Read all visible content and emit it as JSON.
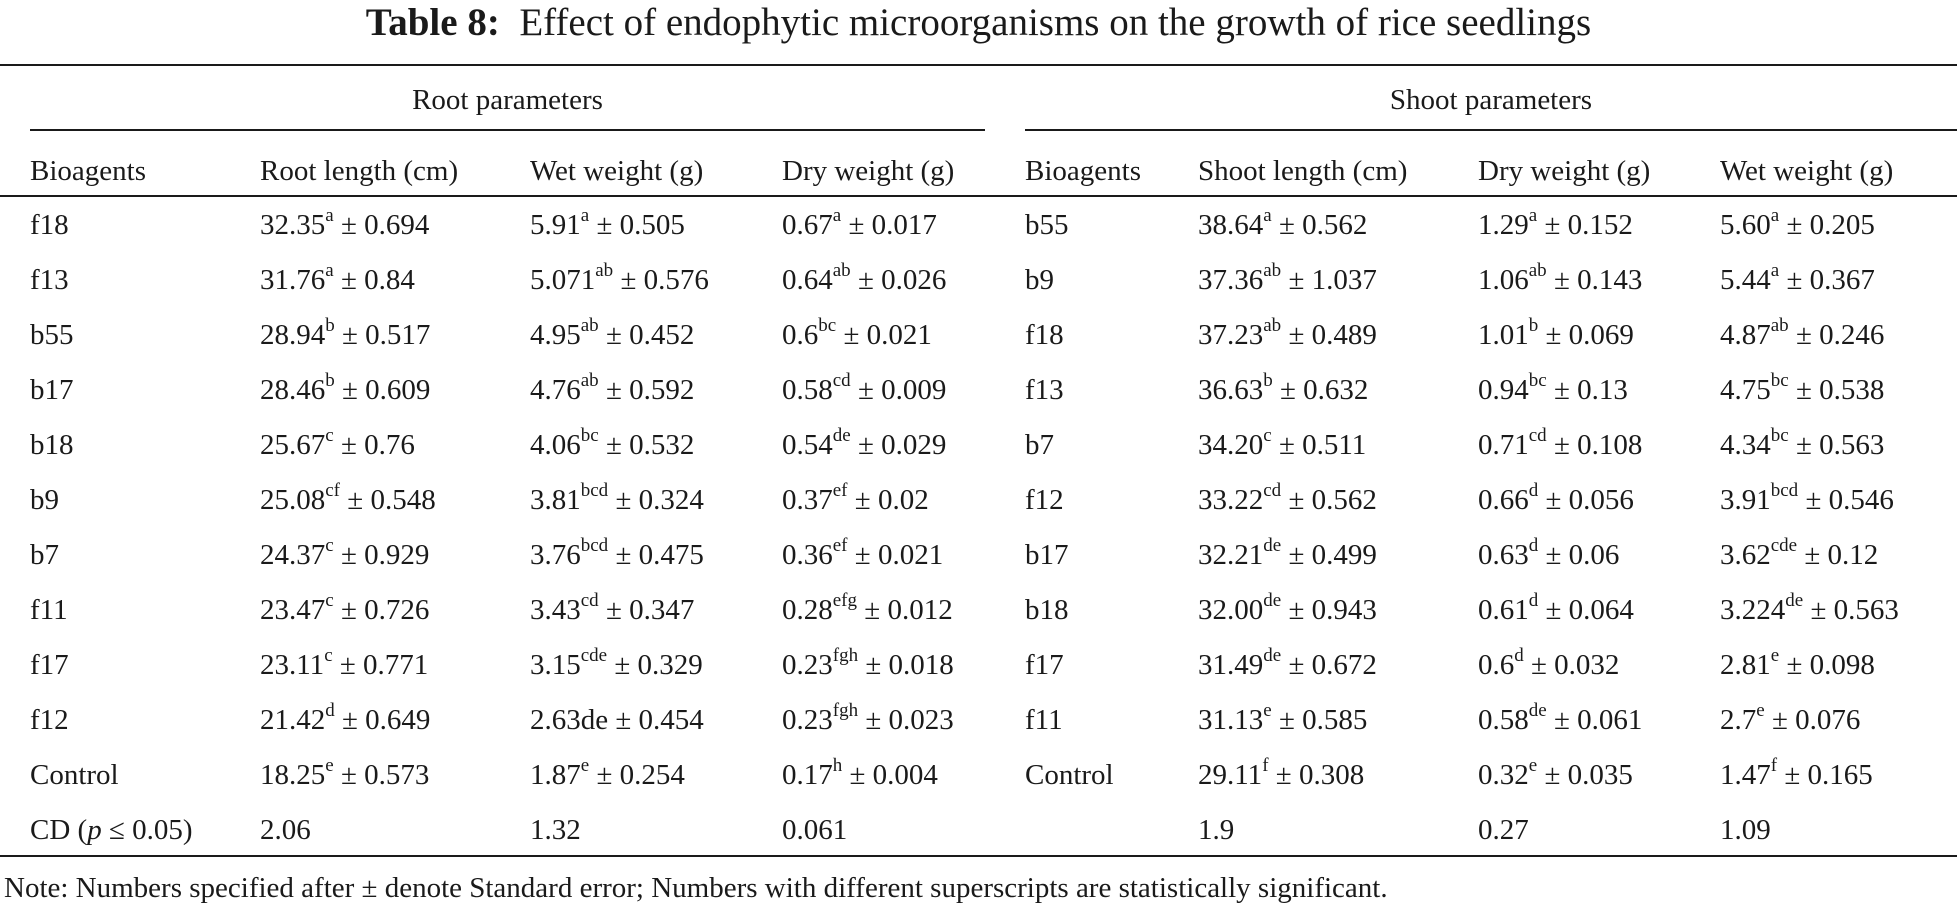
{
  "title": {
    "label": "Table 8:",
    "text": "Effect of endophytic microorganisms on the growth of rice seedlings"
  },
  "groups": {
    "root": "Root parameters",
    "shoot": "Shoot parameters"
  },
  "headers": [
    "Bioagents",
    "Root length (cm)",
    "Wet weight (g)",
    "Dry weight (g)",
    "Bioagents",
    "Shoot length (cm)",
    "Dry weight (g)",
    "Wet weight (g)"
  ],
  "rows": [
    [
      {
        "t": "f18"
      },
      {
        "v": "32.35",
        "s": "a",
        "e": "0.694"
      },
      {
        "v": "5.91",
        "s": "a",
        "e": "0.505"
      },
      {
        "v": "0.67",
        "s": "a",
        "e": "0.017"
      },
      {
        "t": "b55"
      },
      {
        "v": "38.64",
        "s": "a",
        "e": "0.562"
      },
      {
        "v": "1.29",
        "s": "a",
        "e": "0.152"
      },
      {
        "v": "5.60",
        "s": "a",
        "e": "0.205"
      }
    ],
    [
      {
        "t": "f13"
      },
      {
        "v": "31.76",
        "s": "a",
        "e": "0.84"
      },
      {
        "v": "5.071",
        "s": "ab",
        "e": "0.576"
      },
      {
        "v": "0.64",
        "s": "ab",
        "e": "0.026"
      },
      {
        "t": "b9"
      },
      {
        "v": "37.36",
        "s": "ab",
        "e": "1.037"
      },
      {
        "v": "1.06",
        "s": "ab",
        "e": "0.143"
      },
      {
        "v": "5.44",
        "s": "a",
        "e": "0.367"
      }
    ],
    [
      {
        "t": "b55"
      },
      {
        "v": "28.94",
        "s": "b",
        "e": "0.517"
      },
      {
        "v": "4.95",
        "s": "ab",
        "e": "0.452"
      },
      {
        "v": "0.6",
        "s": "bc",
        "e": "0.021"
      },
      {
        "t": "f18"
      },
      {
        "v": "37.23",
        "s": "ab",
        "e": "0.489"
      },
      {
        "v": "1.01",
        "s": "b",
        "e": "0.069"
      },
      {
        "v": "4.87",
        "s": "ab",
        "e": "0.246"
      }
    ],
    [
      {
        "t": "b17"
      },
      {
        "v": "28.46",
        "s": "b",
        "e": "0.609"
      },
      {
        "v": "4.76",
        "s": "ab",
        "e": "0.592"
      },
      {
        "v": "0.58",
        "s": "cd",
        "e": "0.009"
      },
      {
        "t": "f13"
      },
      {
        "v": "36.63",
        "s": "b",
        "e": "0.632"
      },
      {
        "v": "0.94",
        "s": "bc",
        "e": "0.13"
      },
      {
        "v": "4.75",
        "s": "bc",
        "e": "0.538"
      }
    ],
    [
      {
        "t": "b18"
      },
      {
        "v": "25.67",
        "s": "c",
        "e": "0.76"
      },
      {
        "v": "4.06",
        "s": "bc",
        "e": "0.532"
      },
      {
        "v": "0.54",
        "s": "de",
        "e": "0.029"
      },
      {
        "t": "b7"
      },
      {
        "v": "34.20",
        "s": "c",
        "e": "0.511"
      },
      {
        "v": "0.71",
        "s": "cd",
        "e": "0.108"
      },
      {
        "v": "4.34",
        "s": "bc",
        "e": "0.563"
      }
    ],
    [
      {
        "t": "b9"
      },
      {
        "v": "25.08",
        "s": "cf",
        "e": "0.548"
      },
      {
        "v": "3.81",
        "s": "bcd",
        "e": "0.324"
      },
      {
        "v": "0.37",
        "s": "ef",
        "e": "0.02"
      },
      {
        "t": "f12"
      },
      {
        "v": "33.22",
        "s": "cd",
        "e": "0.562"
      },
      {
        "v": "0.66",
        "s": "d",
        "e": "0.056"
      },
      {
        "v": "3.91",
        "s": "bcd",
        "e": "0.546"
      }
    ],
    [
      {
        "t": "b7"
      },
      {
        "v": "24.37",
        "s": "c",
        "e": "0.929"
      },
      {
        "v": "3.76",
        "s": "bcd",
        "e": "0.475"
      },
      {
        "v": "0.36",
        "s": "ef",
        "e": "0.021"
      },
      {
        "t": "b17"
      },
      {
        "v": "32.21",
        "s": "de",
        "e": "0.499"
      },
      {
        "v": "0.63",
        "s": "d",
        "e": "0.06"
      },
      {
        "v": "3.62",
        "s": "cde",
        "e": "0.12"
      }
    ],
    [
      {
        "t": "f11"
      },
      {
        "v": "23.47",
        "s": "c",
        "e": "0.726"
      },
      {
        "v": "3.43",
        "s": "cd",
        "e": "0.347"
      },
      {
        "v": "0.28",
        "s": "efg",
        "e": "0.012"
      },
      {
        "t": "b18"
      },
      {
        "v": "32.00",
        "s": "de",
        "e": "0.943"
      },
      {
        "v": "0.61",
        "s": "d",
        "e": "0.064"
      },
      {
        "v": "3.224",
        "s": "de",
        "e": "0.563"
      }
    ],
    [
      {
        "t": "f17"
      },
      {
        "v": "23.11",
        "s": "c",
        "e": "0.771"
      },
      {
        "v": "3.15",
        "s": "cde",
        "e": "0.329"
      },
      {
        "v": "0.23",
        "s": "fgh",
        "e": "0.018"
      },
      {
        "t": "f17"
      },
      {
        "v": "31.49",
        "s": "de",
        "e": "0.672"
      },
      {
        "v": "0.6",
        "s": "d",
        "e": "0.032"
      },
      {
        "v": "2.81",
        "s": "e",
        "e": "0.098"
      }
    ],
    [
      {
        "t": "f12"
      },
      {
        "v": "21.42",
        "s": "d",
        "e": "0.649"
      },
      {
        "t": "2.63de ± 0.454"
      },
      {
        "v": "0.23",
        "s": "fgh",
        "e": "0.023"
      },
      {
        "t": "f11"
      },
      {
        "v": "31.13",
        "s": "e",
        "e": "0.585"
      },
      {
        "v": "0.58",
        "s": "de",
        "e": "0.061"
      },
      {
        "v": "2.7",
        "s": "e",
        "e": "0.076"
      }
    ],
    [
      {
        "t": "Control"
      },
      {
        "v": "18.25",
        "s": "e",
        "e": "0.573"
      },
      {
        "v": "1.87",
        "s": "e",
        "e": "0.254"
      },
      {
        "v": "0.17",
        "s": "h",
        "e": "0.004"
      },
      {
        "t": "Control"
      },
      {
        "v": "29.11",
        "s": "f",
        "e": "0.308"
      },
      {
        "v": "0.32",
        "s": "e",
        "e": "0.035"
      },
      {
        "v": "1.47",
        "s": "f",
        "e": "0.165"
      }
    ],
    [
      {
        "t": "CD (",
        "it": "p",
        "t2": " ≤ 0.05)"
      },
      {
        "t": "2.06"
      },
      {
        "t": "1.32"
      },
      {
        "t": "0.061"
      },
      {
        "t": ""
      },
      {
        "t": "1.9"
      },
      {
        "t": "0.27"
      },
      {
        "t": "1.09"
      }
    ]
  ],
  "note": "Note: Numbers specified after ± denote Standard error; Numbers with different superscripts are statistically significant."
}
